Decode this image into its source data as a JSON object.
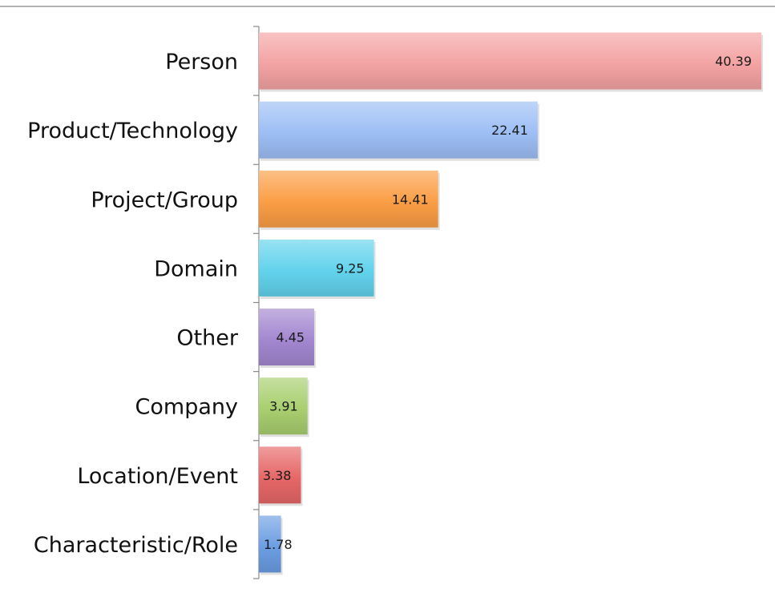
{
  "chart_data": {
    "type": "bar",
    "orientation": "horizontal",
    "categories": [
      "Person",
      "Product/Technology",
      "Project/Group",
      "Domain",
      "Other",
      "Company",
      "Location/Event",
      "Characteristic/Role"
    ],
    "values": [
      40.39,
      22.41,
      14.41,
      9.25,
      4.45,
      3.91,
      3.38,
      1.78
    ],
    "value_labels": [
      "40.39",
      "22.41",
      "14.41",
      "9.25",
      "4.45",
      "3.91",
      "3.38",
      "1.78"
    ],
    "colors": [
      "#f4a3a3",
      "#9dbff5",
      "#fb9e45",
      "#62d3ec",
      "#a387d0",
      "#a8cf6f",
      "#e76767",
      "#6b9ee3"
    ],
    "title": "",
    "xlabel": "",
    "ylabel": "",
    "xlim": [
      0,
      40.39
    ],
    "grid": false,
    "legend": "none"
  }
}
